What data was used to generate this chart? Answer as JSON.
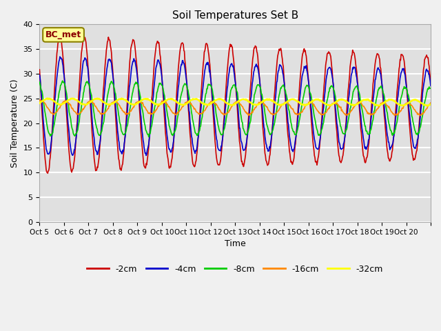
{
  "title": "Soil Temperatures Set B",
  "xlabel": "Time",
  "ylabel": "Soil Temperature (C)",
  "ylim": [
    0,
    40
  ],
  "yticks": [
    0,
    5,
    10,
    15,
    20,
    25,
    30,
    35,
    40
  ],
  "xlabels": [
    "Oct 5",
    "Oct 6",
    "Oct 7",
    "Oct 8",
    "Oct 9",
    "Oct 10",
    "Oct 11",
    "Oct 12",
    "Oct 13",
    "Oct 14",
    "Oct 15",
    "Oct 16",
    "Oct 17",
    "Oct 18",
    "Oct 19",
    "Oct 20",
    ""
  ],
  "series_colors": [
    "#cc0000",
    "#0000cc",
    "#00cc00",
    "#ff8800",
    "#ffff00"
  ],
  "series_labels": [
    "-2cm",
    "-4cm",
    "-8cm",
    "-16cm",
    "-32cm"
  ],
  "annotation_text": "BC_met",
  "annotation_bg": "#ffff99",
  "annotation_border": "#8B8000",
  "fig_bg_color": "#f0f0f0",
  "axes_bg_color": "#e0e0e0",
  "grid_color": "#ffffff",
  "n_days": 16,
  "points_per_day": 48
}
